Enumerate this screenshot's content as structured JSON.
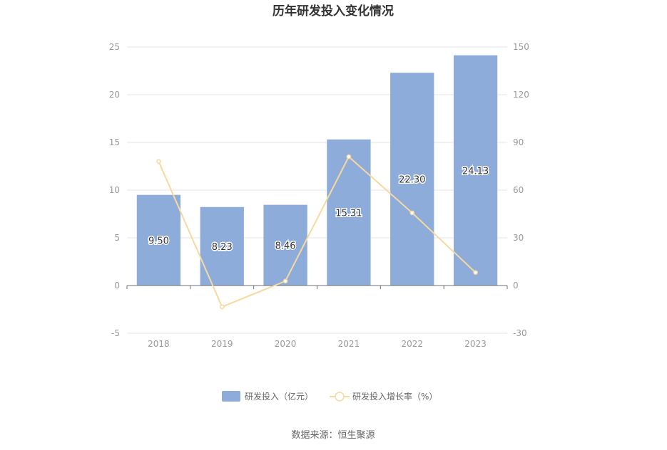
{
  "chart_data": {
    "type": "bar",
    "title": "历年研发投入变化情况",
    "categories": [
      "2018",
      "2019",
      "2020",
      "2021",
      "2022",
      "2023"
    ],
    "series": [
      {
        "name": "研发投入（亿元）",
        "type": "bar",
        "axis": "left",
        "values": [
          9.5,
          8.23,
          8.46,
          15.31,
          22.3,
          24.13
        ],
        "labels": [
          "9.50",
          "8.23",
          "8.46",
          "15.31",
          "22.30",
          "24.13"
        ],
        "color": "#8eacd9"
      },
      {
        "name": "研发投入增长率（%）",
        "type": "line",
        "axis": "right",
        "values": [
          78.0,
          -13.4,
          2.8,
          81.0,
          45.7,
          8.2
        ],
        "color": "#f7d9a0"
      }
    ],
    "y_left": {
      "min": -5,
      "max": 25,
      "ticks": [
        "-5",
        "0",
        "5",
        "10",
        "15",
        "20",
        "25"
      ]
    },
    "y_right": {
      "min": -30,
      "max": 150,
      "ticks": [
        "-30",
        "0",
        "30",
        "60",
        "90",
        "120",
        "150"
      ]
    },
    "grid": true,
    "legend": "bottom"
  },
  "source_text": "数据来源：恒生聚源"
}
